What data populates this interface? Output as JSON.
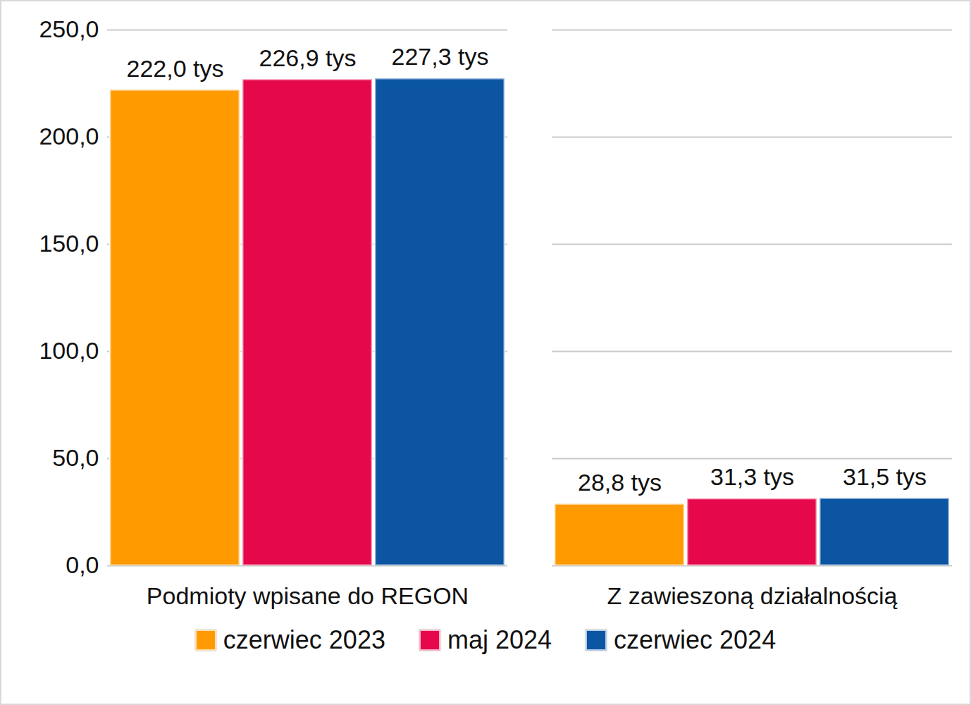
{
  "chart_data": {
    "type": "bar",
    "categories": [
      "Podmioty wpisane do REGON",
      "Z zawieszoną działalnością"
    ],
    "series": [
      {
        "name": "czerwiec 2023",
        "color": "#ff9a00",
        "values": [
          222.0,
          28.8
        ],
        "value_labels": [
          "222,0 tys",
          "28,8 tys"
        ]
      },
      {
        "name": "maj 2024",
        "color": "#e5084a",
        "values": [
          226.9,
          31.3
        ],
        "value_labels": [
          "226,9 tys",
          "31,3 tys"
        ]
      },
      {
        "name": "czerwiec 2024",
        "color": "#0b55a3",
        "values": [
          227.3,
          31.5
        ],
        "value_labels": [
          "227,3 tys",
          "31,5 tys"
        ]
      }
    ],
    "ylim": [
      0,
      250
    ],
    "yticks": [
      {
        "value": 0,
        "label": "0,0"
      },
      {
        "value": 50,
        "label": "50,0"
      },
      {
        "value": 100,
        "label": "100,0"
      },
      {
        "value": 150,
        "label": "150,0"
      },
      {
        "value": 200,
        "label": "200,0"
      },
      {
        "value": 250,
        "label": "250,0"
      }
    ],
    "grid": true,
    "data_labels": true,
    "legend": "bottom"
  }
}
